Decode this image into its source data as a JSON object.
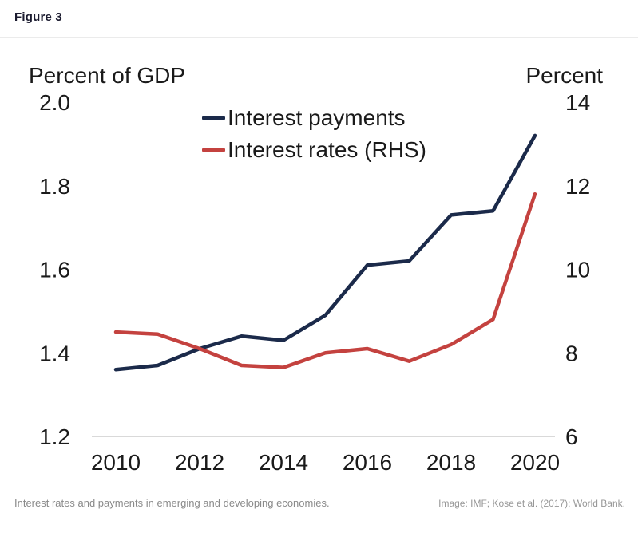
{
  "header": {
    "figure_label": "Figure 3"
  },
  "legend": [
    {
      "label": "Interest payments",
      "color": "#1b2a4a"
    },
    {
      "label": "Interest rates (RHS)",
      "color": "#c4423f"
    }
  ],
  "chart_data": {
    "type": "line",
    "x": [
      2010,
      2011,
      2012,
      2013,
      2014,
      2015,
      2016,
      2017,
      2018,
      2019,
      2020
    ],
    "x_tick_labels": [
      "2010",
      "2012",
      "2014",
      "2016",
      "2018",
      "2020"
    ],
    "series": [
      {
        "name": "Interest payments",
        "axis": "left",
        "color": "#1b2a4a",
        "values": [
          1.36,
          1.37,
          1.41,
          1.44,
          1.43,
          1.49,
          1.61,
          1.62,
          1.73,
          1.74,
          1.92
        ]
      },
      {
        "name": "Interest rates (RHS)",
        "axis": "right",
        "color": "#c4423f",
        "values": [
          8.5,
          8.45,
          8.1,
          7.7,
          7.65,
          8.0,
          8.1,
          7.8,
          8.2,
          8.8,
          11.8
        ]
      }
    ],
    "left_axis": {
      "title": "Percent of GDP",
      "tick_labels": [
        "2.0",
        "1.8",
        "1.6",
        "1.4",
        "1.2"
      ],
      "tick_values": [
        2.0,
        1.8,
        1.6,
        1.4,
        1.2
      ],
      "min": 1.2,
      "max": 2.0
    },
    "right_axis": {
      "title": "Percent",
      "tick_labels": [
        "14",
        "12",
        "10",
        "8",
        "6"
      ],
      "tick_values": [
        14,
        12,
        10,
        8,
        6
      ],
      "min": 6,
      "max": 14
    },
    "grid": false,
    "legend_position": "top-center",
    "axis_line_color": "#b3b3b3"
  },
  "caption": {
    "text": "Interest rates and payments in emerging and developing economies.",
    "credit": "Image: IMF; Kose et al. (2017); World Bank."
  }
}
